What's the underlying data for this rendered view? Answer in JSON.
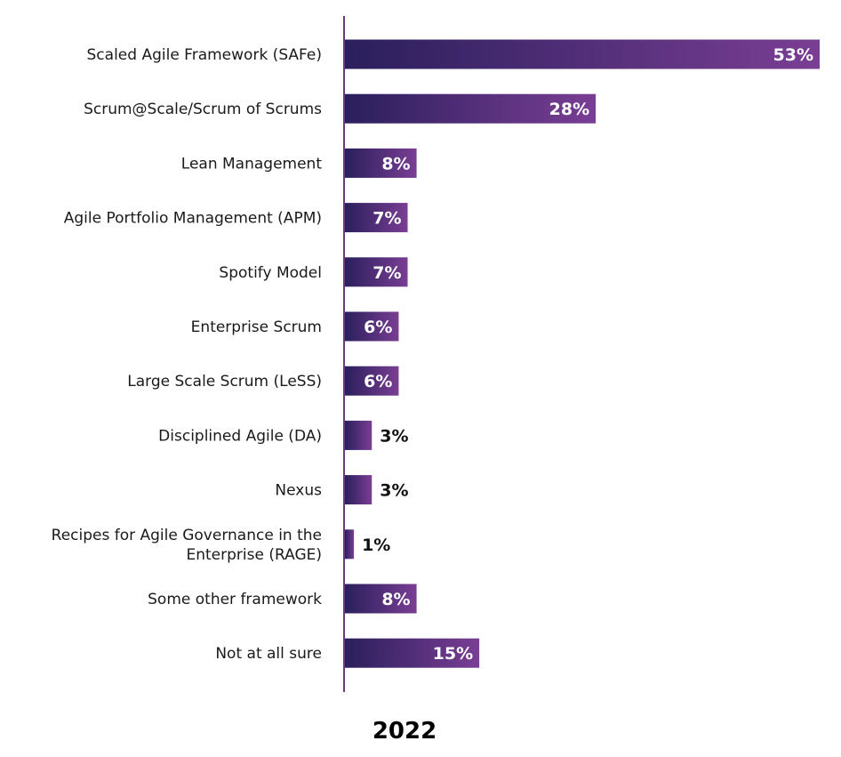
{
  "chart_data": {
    "type": "bar",
    "orientation": "horizontal",
    "categories": [
      "Scaled Agile Framework (SAFe)",
      "Scrum@Scale/Scrum of Scrums",
      "Lean Management",
      "Agile Portfolio Management (APM)",
      "Spotify Model",
      "Enterprise Scrum",
      "Large Scale Scrum (LeSS)",
      "Disciplined Agile (DA)",
      "Nexus",
      "Recipes for Agile Governance in the Enterprise (RAGE)",
      "Some other framework",
      "Not at all sure"
    ],
    "category_lines": [
      [
        "Scaled Agile Framework (SAFe)"
      ],
      [
        "Scrum@Scale/Scrum of Scrums"
      ],
      [
        "Lean Management"
      ],
      [
        "Agile Portfolio Management (APM)"
      ],
      [
        "Spotify Model"
      ],
      [
        "Enterprise Scrum"
      ],
      [
        "Large Scale Scrum (LeSS)"
      ],
      [
        "Disciplined Agile (DA)"
      ],
      [
        "Nexus"
      ],
      [
        "Recipes for Agile Governance in the",
        "Enterprise (RAGE)"
      ],
      [
        "Some other framework"
      ],
      [
        "Not at all sure"
      ]
    ],
    "values": [
      53,
      28,
      8,
      7,
      7,
      6,
      6,
      3,
      3,
      1,
      8,
      15
    ],
    "value_labels": [
      "53%",
      "28%",
      "8%",
      "7%",
      "7%",
      "6%",
      "6%",
      "3%",
      "3%",
      "1%",
      "8%",
      "15%"
    ],
    "xlabel": "2022",
    "ylabel": "",
    "xlim": [
      0,
      53
    ],
    "grid": false,
    "legend": "none",
    "colors": {
      "bar_start": "#2a1f5c",
      "bar_end": "#7a3e94",
      "axis": "#6b3a7d",
      "label_inside": "#ffffff",
      "label_outside": "#111111"
    }
  }
}
